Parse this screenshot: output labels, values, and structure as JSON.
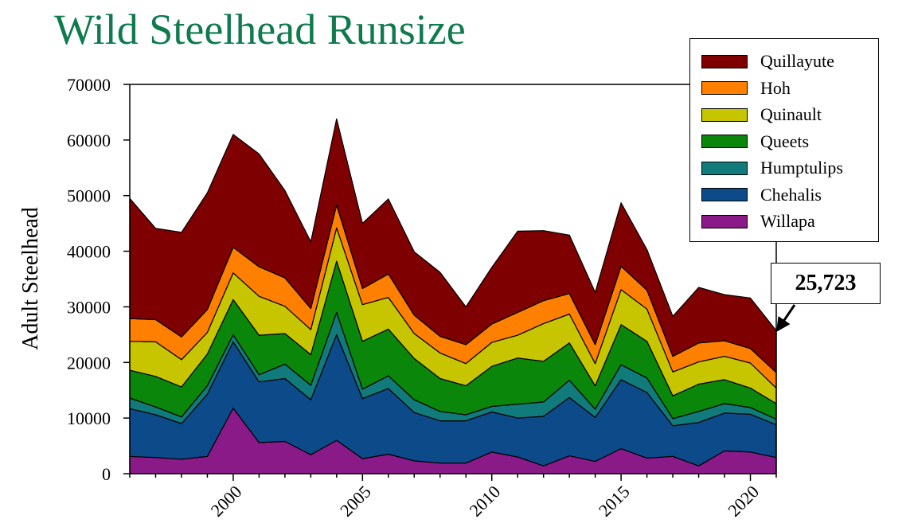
{
  "title": "Wild Steelhead Runsize",
  "chart_data": {
    "type": "area",
    "stacked": true,
    "title": "Wild Steelhead Runsize",
    "xlabel": "",
    "ylabel": "Adult Steelhead",
    "xlim": [
      1996,
      2021
    ],
    "ylim": [
      0,
      70000
    ],
    "yticks": [
      0,
      10000,
      20000,
      30000,
      40000,
      50000,
      60000,
      70000
    ],
    "xticks": [
      2000,
      2005,
      2010,
      2015,
      2020
    ],
    "x": [
      1996,
      1997,
      1998,
      1999,
      2000,
      2001,
      2002,
      2003,
      2004,
      2005,
      2006,
      2007,
      2008,
      2009,
      2010,
      2011,
      2012,
      2013,
      2014,
      2015,
      2016,
      2017,
      2018,
      2019,
      2020,
      2021
    ],
    "series": [
      {
        "name": "Willapa",
        "color": "#8b1a89",
        "values": [
          3100,
          2900,
          2600,
          3100,
          11800,
          5600,
          5800,
          3400,
          6000,
          2700,
          3500,
          2300,
          1900,
          1900,
          3900,
          3000,
          1400,
          3200,
          2200,
          4500,
          2800,
          3100,
          1400,
          4100,
          3900,
          2900
        ]
      },
      {
        "name": "Chehalis",
        "color": "#0d4a8a",
        "values": [
          8600,
          7700,
          6400,
          11200,
          11900,
          10900,
          11300,
          9900,
          19000,
          10800,
          11800,
          8700,
          7600,
          7600,
          7200,
          7000,
          8900,
          10500,
          7900,
          12400,
          11800,
          5500,
          7800,
          6800,
          6800,
          5900
        ]
      },
      {
        "name": "Humptulips",
        "color": "#117a7a",
        "values": [
          1900,
          1400,
          1200,
          1500,
          1300,
          1300,
          2600,
          2600,
          4000,
          1700,
          2300,
          2300,
          1700,
          1100,
          1000,
          2500,
          2600,
          3100,
          1500,
          2700,
          2600,
          1300,
          2000,
          1700,
          1200,
          1000
        ]
      },
      {
        "name": "Queets",
        "color": "#0a860a",
        "values": [
          5000,
          5500,
          5400,
          5700,
          6300,
          7100,
          5500,
          5500,
          9200,
          8600,
          8400,
          7400,
          5900,
          5200,
          7200,
          8300,
          7300,
          6700,
          4200,
          7200,
          6600,
          4100,
          4900,
          4300,
          3500,
          2800
        ]
      },
      {
        "name": "Quinault",
        "color": "#c7c500",
        "values": [
          5200,
          6200,
          4900,
          3900,
          4800,
          7000,
          4900,
          4500,
          6000,
          6600,
          5700,
          4500,
          4600,
          4000,
          4300,
          4100,
          6800,
          5200,
          4000,
          6300,
          5800,
          4300,
          4000,
          4200,
          4500,
          2800
        ]
      },
      {
        "name": "Hoh",
        "color": "#ff8000",
        "values": [
          4100,
          4000,
          4100,
          4100,
          4600,
          5300,
          5100,
          3800,
          4100,
          2900,
          4200,
          3300,
          3000,
          3400,
          3300,
          4100,
          4100,
          3700,
          3400,
          4200,
          3400,
          2800,
          3400,
          2800,
          2600,
          2800
        ]
      },
      {
        "name": "Quillayute",
        "color": "#7f0000",
        "values": [
          21600,
          16400,
          18800,
          21000,
          20300,
          20300,
          15700,
          12000,
          15500,
          11700,
          13500,
          11400,
          11500,
          6800,
          10200,
          14600,
          12600,
          10500,
          9400,
          11400,
          7300,
          7200,
          10000,
          8300,
          9100,
          7523
        ]
      }
    ],
    "legend": [
      "Quillayute",
      "Hoh",
      "Quinault",
      "Queets",
      "Humptulips",
      "Chehalis",
      "Willapa"
    ],
    "legend_position": "top-right",
    "annotation": "25,723"
  }
}
